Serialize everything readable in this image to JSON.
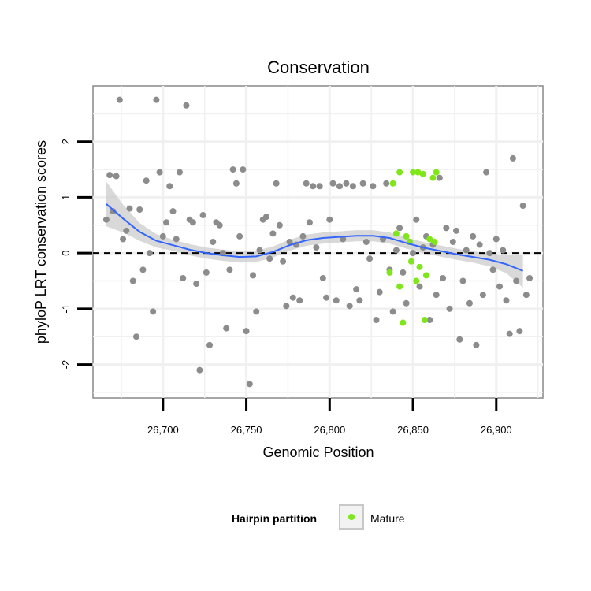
{
  "chart_data": {
    "type": "scatter",
    "title": "Conservation",
    "xlabel": "Genomic Position",
    "ylabel": "phyloP LRT conservation scores",
    "xlim": [
      26658,
      26928
    ],
    "ylim": [
      -2.6,
      3.0
    ],
    "x_ticks": [
      26700,
      26750,
      26800,
      26850,
      26900
    ],
    "x_tick_labels": [
      "26,700",
      "26,750",
      "26,800",
      "26,850",
      "26,900"
    ],
    "y_ticks": [
      -2,
      -1,
      0,
      1,
      2
    ],
    "y_tick_labels": [
      "-2",
      "-1",
      "0",
      "1",
      "2"
    ],
    "reference_line": {
      "y": 0,
      "style": "dashed"
    },
    "grid": true,
    "legend": {
      "title": "Hairpin partition",
      "position": "bottom",
      "entries": [
        "Mature"
      ]
    },
    "colors": {
      "background_points": "#8c8c8c",
      "mature_points": "#7fe61a",
      "smooth_line": "#3366ff",
      "confidence_band": "#cccccc"
    },
    "series": [
      {
        "name": "background",
        "points": [
          [
            26666,
            0.6
          ],
          [
            26668,
            1.4
          ],
          [
            26670,
            0.75
          ],
          [
            26672,
            1.38
          ],
          [
            26674,
            2.75
          ],
          [
            26676,
            0.25
          ],
          [
            26678,
            0.4
          ],
          [
            26680,
            0.8
          ],
          [
            26682,
            -0.5
          ],
          [
            26684,
            -1.5
          ],
          [
            26686,
            0.78
          ],
          [
            26688,
            -0.3
          ],
          [
            26690,
            1.3
          ],
          [
            26692,
            0.0
          ],
          [
            26694,
            -1.05
          ],
          [
            26696,
            2.75
          ],
          [
            26698,
            1.45
          ],
          [
            26700,
            0.3
          ],
          [
            26702,
            0.55
          ],
          [
            26704,
            1.2
          ],
          [
            26706,
            0.75
          ],
          [
            26708,
            0.25
          ],
          [
            26710,
            1.45
          ],
          [
            26712,
            -0.45
          ],
          [
            26714,
            2.65
          ],
          [
            26716,
            0.6
          ],
          [
            26718,
            0.55
          ],
          [
            26720,
            -0.55
          ],
          [
            26722,
            -2.1
          ],
          [
            26724,
            0.68
          ],
          [
            26726,
            -0.35
          ],
          [
            26728,
            -1.65
          ],
          [
            26730,
            0.2
          ],
          [
            26732,
            0.55
          ],
          [
            26734,
            0.5
          ],
          [
            26736,
            0.0
          ],
          [
            26738,
            -1.35
          ],
          [
            26740,
            -0.3
          ],
          [
            26742,
            1.5
          ],
          [
            26744,
            1.25
          ],
          [
            26746,
            0.3
          ],
          [
            26748,
            1.5
          ],
          [
            26750,
            -1.4
          ],
          [
            26752,
            -2.35
          ],
          [
            26754,
            -0.4
          ],
          [
            26756,
            -1.05
          ],
          [
            26758,
            0.05
          ],
          [
            26760,
            0.6
          ],
          [
            26762,
            0.65
          ],
          [
            26764,
            -0.1
          ],
          [
            26766,
            0.35
          ],
          [
            26768,
            1.25
          ],
          [
            26770,
            0.5
          ],
          [
            26772,
            -0.15
          ],
          [
            26774,
            -0.95
          ],
          [
            26776,
            0.2
          ],
          [
            26778,
            -0.8
          ],
          [
            26780,
            0.15
          ],
          [
            26782,
            -0.85
          ],
          [
            26784,
            0.3
          ],
          [
            26786,
            1.25
          ],
          [
            26788,
            0.55
          ],
          [
            26790,
            1.2
          ],
          [
            26792,
            0.1
          ],
          [
            26794,
            1.2
          ],
          [
            26796,
            -0.45
          ],
          [
            26798,
            -0.8
          ],
          [
            26800,
            0.6
          ],
          [
            26802,
            1.25
          ],
          [
            26804,
            -0.85
          ],
          [
            26806,
            1.2
          ],
          [
            26808,
            0.25
          ],
          [
            26810,
            1.25
          ],
          [
            26812,
            -0.95
          ],
          [
            26814,
            1.2
          ],
          [
            26816,
            -0.65
          ],
          [
            26818,
            -0.85
          ],
          [
            26820,
            1.25
          ],
          [
            26822,
            0.2
          ],
          [
            26824,
            -0.1
          ],
          [
            26826,
            1.2
          ],
          [
            26828,
            -1.2
          ],
          [
            26830,
            -0.7
          ],
          [
            26832,
            0.25
          ],
          [
            26834,
            1.25
          ],
          [
            26836,
            -0.3
          ],
          [
            26838,
            -1.05
          ],
          [
            26840,
            0.05
          ],
          [
            26842,
            0.45
          ],
          [
            26844,
            -0.35
          ],
          [
            26846,
            -0.9
          ],
          [
            26848,
            0.2
          ],
          [
            26850,
            0.0
          ],
          [
            26852,
            0.6
          ],
          [
            26854,
            -0.6
          ],
          [
            26856,
            0.1
          ],
          [
            26858,
            0.3
          ],
          [
            26860,
            -1.2
          ],
          [
            26862,
            0.15
          ],
          [
            26864,
            -0.75
          ],
          [
            26866,
            1.35
          ],
          [
            26868,
            -0.45
          ],
          [
            26870,
            0.45
          ],
          [
            26872,
            -1.0
          ],
          [
            26874,
            0.2
          ],
          [
            26876,
            0.4
          ],
          [
            26878,
            -1.55
          ],
          [
            26880,
            -0.5
          ],
          [
            26882,
            0.05
          ],
          [
            26884,
            -0.9
          ],
          [
            26886,
            0.3
          ],
          [
            26888,
            -1.65
          ],
          [
            26890,
            0.15
          ],
          [
            26892,
            -0.75
          ],
          [
            26894,
            1.45
          ],
          [
            26896,
            0.0
          ],
          [
            26898,
            -0.3
          ],
          [
            26900,
            0.25
          ],
          [
            26902,
            -0.6
          ],
          [
            26904,
            0.05
          ],
          [
            26906,
            -0.85
          ],
          [
            26908,
            -1.45
          ],
          [
            26910,
            1.7
          ],
          [
            26912,
            -0.5
          ],
          [
            26914,
            -1.4
          ],
          [
            26916,
            0.85
          ],
          [
            26918,
            -0.75
          ],
          [
            26920,
            -0.45
          ]
        ]
      },
      {
        "name": "Mature",
        "points": [
          [
            26836,
            -0.35
          ],
          [
            26838,
            1.25
          ],
          [
            26840,
            0.35
          ],
          [
            26842,
            -0.6
          ],
          [
            26842,
            1.45
          ],
          [
            26844,
            -1.25
          ],
          [
            26846,
            0.3
          ],
          [
            26848,
            0.2
          ],
          [
            26849,
            -0.15
          ],
          [
            26850,
            1.45
          ],
          [
            26852,
            -0.5
          ],
          [
            26853,
            1.45
          ],
          [
            26854,
            -0.25
          ],
          [
            26856,
            1.42
          ],
          [
            26857,
            -1.2
          ],
          [
            26858,
            -0.4
          ],
          [
            26860,
            0.25
          ],
          [
            26862,
            1.35
          ],
          [
            26863,
            0.2
          ],
          [
            26864,
            1.45
          ]
        ]
      }
    ],
    "smooth_curve": [
      [
        26666,
        0.88
      ],
      [
        26676,
        0.62
      ],
      [
        26686,
        0.38
      ],
      [
        26696,
        0.22
      ],
      [
        26706,
        0.14
      ],
      [
        26716,
        0.06
      ],
      [
        26726,
        0.0
      ],
      [
        26736,
        -0.04
      ],
      [
        26746,
        -0.07
      ],
      [
        26756,
        -0.06
      ],
      [
        26766,
        0.02
      ],
      [
        26776,
        0.14
      ],
      [
        26786,
        0.23
      ],
      [
        26796,
        0.27
      ],
      [
        26806,
        0.29
      ],
      [
        26816,
        0.31
      ],
      [
        26826,
        0.31
      ],
      [
        26836,
        0.27
      ],
      [
        26846,
        0.18
      ],
      [
        26856,
        0.1
      ],
      [
        26866,
        0.04
      ],
      [
        26876,
        -0.02
      ],
      [
        26886,
        -0.07
      ],
      [
        26896,
        -0.12
      ],
      [
        26906,
        -0.2
      ],
      [
        26916,
        -0.32
      ]
    ],
    "confidence_band_halfwidth": [
      0.4,
      0.25,
      0.16,
      0.12,
      0.1,
      0.1,
      0.1,
      0.1,
      0.1,
      0.1,
      0.1,
      0.1,
      0.1,
      0.1,
      0.1,
      0.1,
      0.1,
      0.1,
      0.1,
      0.1,
      0.1,
      0.1,
      0.1,
      0.12,
      0.16,
      0.3
    ]
  }
}
